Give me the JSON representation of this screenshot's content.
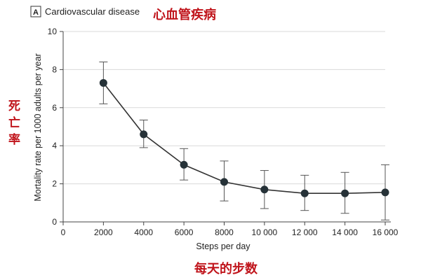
{
  "panel_letter": "A",
  "annotations": {
    "title_cn": "心血管疾病",
    "ylabel_cn": [
      "死",
      "亡",
      "率"
    ],
    "xlabel_cn": "每天的步数"
  },
  "chart_data": {
    "type": "line",
    "title": "Cardiovascular disease",
    "xlabel": "Steps per day",
    "ylabel": "Mortality rate per 1000 adults per year",
    "xlim": [
      0,
      16000
    ],
    "ylim": [
      0,
      10
    ],
    "xticks": [
      0,
      2000,
      4000,
      6000,
      8000,
      10000,
      12000,
      14000,
      16000
    ],
    "xtick_labels": [
      "0",
      "2000",
      "4000",
      "6000",
      "8000",
      "10 000",
      "12 000",
      "14 000",
      "16 000"
    ],
    "yticks": [
      0,
      2,
      4,
      6,
      8,
      10
    ],
    "grid": "horizontal",
    "series": [
      {
        "x": [
          2000,
          4000,
          6000,
          8000,
          10000,
          12000,
          14000,
          16000
        ],
        "y": [
          7.3,
          4.6,
          3.0,
          2.1,
          1.7,
          1.5,
          1.5,
          1.55
        ],
        "err_low": [
          6.2,
          3.9,
          2.2,
          1.1,
          0.7,
          0.6,
          0.45,
          0.1
        ],
        "err_high": [
          8.4,
          5.35,
          3.85,
          3.2,
          2.7,
          2.45,
          2.6,
          3.0
        ]
      }
    ]
  },
  "colors": {
    "annotation": "#c0141b",
    "line": "#333333",
    "marker": "#263238",
    "grid": "#d9d9d9"
  }
}
